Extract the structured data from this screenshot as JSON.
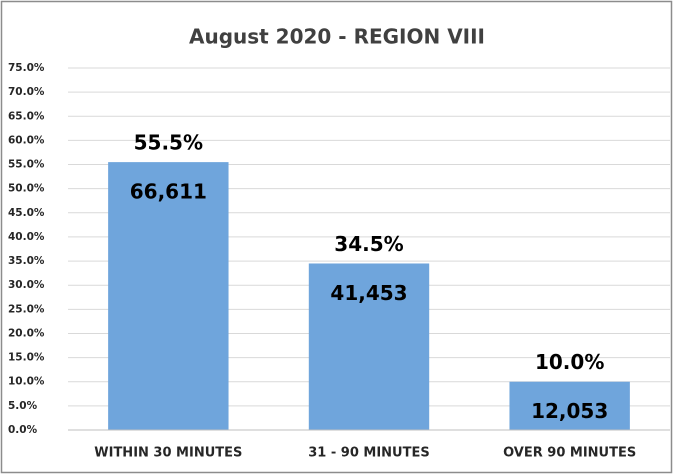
{
  "chart_data": {
    "type": "bar",
    "title": "August 2020 - REGION VIII",
    "categories": [
      "WITHIN 30 MINUTES",
      "31 - 90 MINUTES",
      "OVER 90 MINUTES"
    ],
    "values": [
      55.5,
      34.5,
      10.0
    ],
    "value_labels": [
      "55.5%",
      "34.5%",
      "10.0%"
    ],
    "counts": [
      66611,
      41453,
      12053
    ],
    "count_labels": [
      "66,611",
      "41,453",
      "12,053"
    ],
    "color": "#6fa5dc",
    "ylim": [
      0,
      75
    ],
    "yticks": [
      {
        "value": 0,
        "label": "0.0%"
      },
      {
        "value": 5,
        "label": "5.0%"
      },
      {
        "value": 10,
        "label": "10.0%"
      },
      {
        "value": 15,
        "label": "15.0%"
      },
      {
        "value": 20,
        "label": "20.0%"
      },
      {
        "value": 25,
        "label": "25.0%"
      },
      {
        "value": 30,
        "label": "30.0%"
      },
      {
        "value": 35,
        "label": "35.0%"
      },
      {
        "value": 40,
        "label": "40.0%"
      },
      {
        "value": 45,
        "label": "45.0%"
      },
      {
        "value": 50,
        "label": "50.0%"
      },
      {
        "value": 55,
        "label": "55.0%"
      },
      {
        "value": 60,
        "label": "60.0%"
      },
      {
        "value": 65,
        "label": "65.0%"
      },
      {
        "value": 70,
        "label": "70.0%"
      },
      {
        "value": 75,
        "label": "75.0%"
      }
    ],
    "grid": true
  }
}
